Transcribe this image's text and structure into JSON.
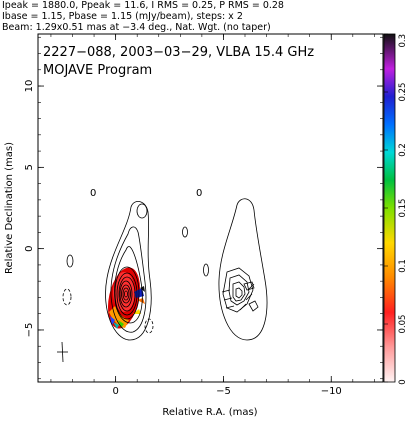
{
  "header": {
    "line1": "Ipeak = 1880.0, Ppeak = 11.6, I RMS = 0.25, P RMS = 0.28",
    "line2": "Ibase = 1.15, Pbase = 1.15 (mJy/beam), steps: x 2",
    "line3": "Beam: 1.29x0.51 mas at −3.4 deg., Nat. Wgt. (no taper)"
  },
  "panel": {
    "title_line1": "2227−088, 2003−03−29, VLBA 15.4 GHz",
    "title_line2": "MOJAVE Program"
  },
  "chart_data": {
    "type": "heatmap",
    "xlabel": "Relative R.A. (mas)",
    "ylabel": "Relative Declination (mas)",
    "xlim": [
      3.6,
      -12.4
    ],
    "ylim": [
      -8.2,
      13.2
    ],
    "x_ticks": [
      0,
      -5,
      -10
    ],
    "x_tick_labels": [
      "0",
      "−5",
      "−10"
    ],
    "y_ticks": [
      10,
      5,
      0,
      -5
    ],
    "y_tick_labels": [
      "10",
      "5",
      "0",
      "−5"
    ],
    "colorbar": {
      "range": [
        0,
        0.3
      ],
      "ticks": [
        0,
        0.05,
        0.1,
        0.15,
        0.2,
        0.25,
        0.3
      ],
      "tick_labels": [
        "0",
        "0.05",
        "0.1",
        "0.15",
        "0.2",
        "0.25",
        "0.3"
      ]
    },
    "annotations": [
      {
        "text": "0",
        "x": 1.3,
        "y": 4.8
      },
      {
        "text": "0",
        "x": -4.6,
        "y": 4.8
      }
    ],
    "beam": {
      "major_mas": 1.29,
      "minor_mas": 0.51,
      "pa_deg": -3.4
    },
    "grid": false
  }
}
